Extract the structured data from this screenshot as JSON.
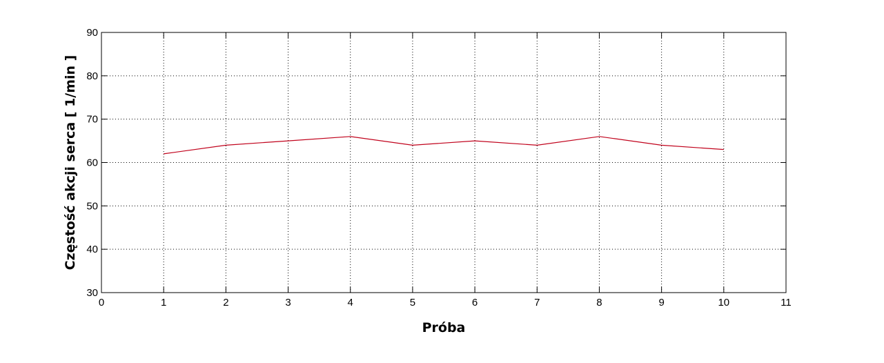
{
  "chart_data": {
    "type": "line",
    "xlabel": "Próba",
    "ylabel": "Częstość akcji serca [ 1/min ]",
    "xlim": [
      0,
      11
    ],
    "ylim": [
      30,
      90
    ],
    "xticks": [
      0,
      1,
      2,
      3,
      4,
      5,
      6,
      7,
      8,
      9,
      10,
      11
    ],
    "yticks": [
      30,
      40,
      50,
      60,
      70,
      80,
      90
    ],
    "grid": true,
    "series": [
      {
        "color": "#c0001a",
        "x": [
          1,
          2,
          3,
          4,
          5,
          6,
          7,
          8,
          9,
          10
        ],
        "y": [
          62,
          64,
          65,
          66,
          64,
          65,
          64,
          66,
          64,
          63
        ]
      }
    ]
  }
}
